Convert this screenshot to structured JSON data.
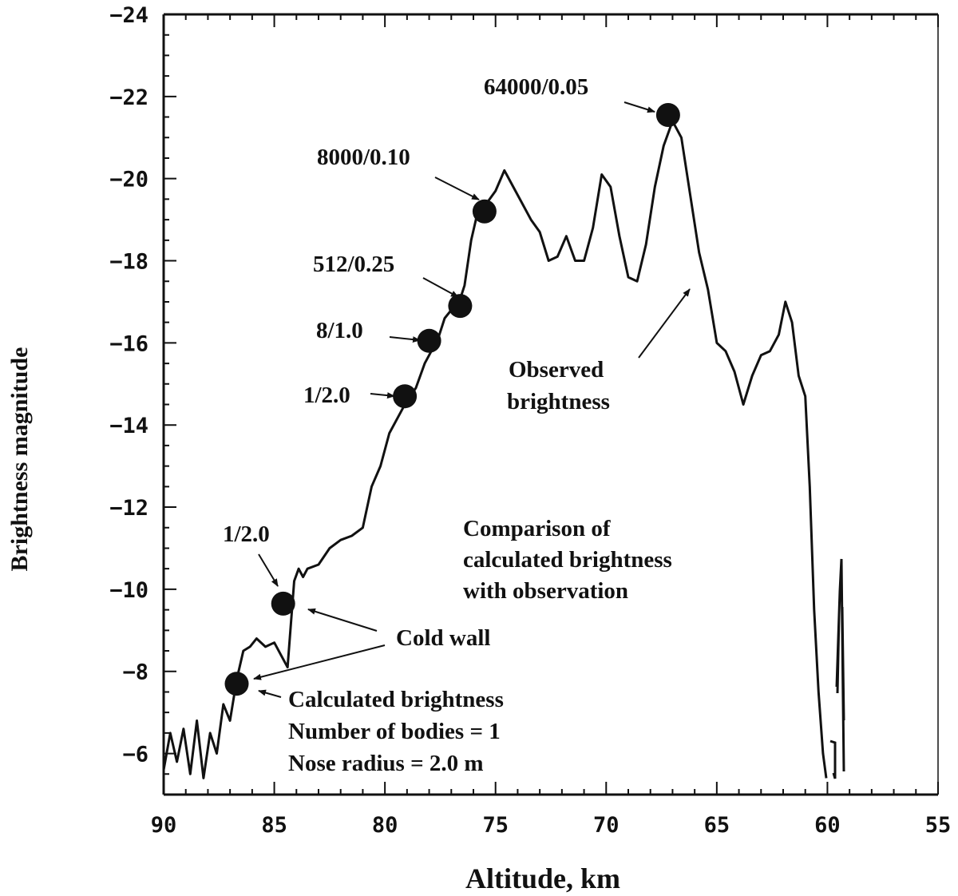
{
  "chart_data": {
    "type": "line",
    "xlabel": "Altitude, km",
    "ylabel": "Brightness magnitude",
    "xlim": [
      90,
      55
    ],
    "ylim": [
      -5,
      -24
    ],
    "x_ticks": [
      "90",
      "85",
      "80",
      "75",
      "70",
      "65",
      "60",
      "55"
    ],
    "y_ticks": [
      "-24",
      "-22",
      "-20",
      "-18",
      "-16",
      "-14",
      "-12",
      "-10",
      "-8",
      "-6"
    ],
    "grid": false,
    "series": [
      {
        "name": "Observed brightness",
        "x": [
          90.0,
          89.7,
          89.4,
          89.1,
          88.8,
          88.5,
          88.2,
          87.9,
          87.6,
          87.3,
          87.0,
          86.7,
          86.4,
          86.1,
          85.8,
          85.4,
          85.0,
          84.7,
          84.4,
          84.1,
          83.9,
          83.7,
          83.5,
          83.0,
          82.5,
          82.0,
          81.5,
          81.0,
          80.6,
          80.2,
          79.8,
          79.4,
          79.0,
          78.6,
          78.2,
          77.9,
          77.6,
          77.3,
          77.0,
          76.7,
          76.4,
          76.1,
          75.8,
          75.4,
          75.0,
          74.6,
          74.2,
          73.8,
          73.4,
          73.0,
          72.6,
          72.2,
          71.8,
          71.4,
          71.0,
          70.6,
          70.2,
          69.8,
          69.4,
          69.0,
          68.6,
          68.2,
          67.8,
          67.4,
          67.0,
          66.6,
          66.2,
          65.8,
          65.4,
          65.0,
          64.6,
          64.2,
          63.8,
          63.4,
          63.0,
          62.6,
          62.2,
          61.9,
          61.6,
          61.3,
          61.0,
          60.8,
          60.6,
          60.4,
          60.2,
          60.05
        ],
        "y": [
          -5.6,
          -6.5,
          -5.8,
          -6.6,
          -5.5,
          -6.8,
          -5.4,
          -6.5,
          -6.0,
          -7.2,
          -6.8,
          -7.8,
          -8.5,
          -8.6,
          -8.8,
          -8.6,
          -8.7,
          -8.4,
          -8.1,
          -10.2,
          -10.5,
          -10.3,
          -10.5,
          -10.6,
          -11.0,
          -11.2,
          -11.3,
          -11.5,
          -12.5,
          -13.0,
          -13.8,
          -14.2,
          -14.6,
          -14.9,
          -15.5,
          -15.8,
          -16.1,
          -16.6,
          -16.8,
          -16.9,
          -17.4,
          -18.5,
          -19.2,
          -19.4,
          -19.7,
          -20.2,
          -19.8,
          -19.4,
          -19.0,
          -18.7,
          -18.0,
          -18.1,
          -18.6,
          -18.0,
          -18.0,
          -18.8,
          -20.1,
          -19.8,
          -18.6,
          -17.6,
          -17.5,
          -18.4,
          -19.8,
          -20.8,
          -21.4,
          -21.0,
          -19.6,
          -18.2,
          -17.3,
          -16.0,
          -15.8,
          -15.3,
          -14.5,
          -15.2,
          -15.7,
          -15.8,
          -16.2,
          -17.0,
          -16.5,
          -15.2,
          -14.7,
          -12.5,
          -9.5,
          -7.5,
          -6.0,
          -5.4
        ]
      },
      {
        "name": "Calculated brightness",
        "x": [
          86.7,
          84.6,
          79.1,
          78.0,
          76.6,
          75.5,
          67.2
        ],
        "y": [
          -7.7,
          -9.65,
          -14.7,
          -16.05,
          -16.9,
          -19.2,
          -21.55
        ],
        "labels": [
          "",
          "1/2.0",
          "1/2.0",
          "8/1.0",
          "512/0.25",
          "8000/0.10",
          "64000/0.05"
        ]
      }
    ],
    "annotations": {
      "observed_label": [
        "Observed",
        "brightness"
      ],
      "cold_wall": "Cold wall",
      "comparison": [
        "Comparison of",
        "calculated brightness",
        "with observation"
      ],
      "calculated": [
        "Calculated brightness",
        "Number of bodies = 1",
        "Nose radius = 2.0 m"
      ]
    }
  }
}
